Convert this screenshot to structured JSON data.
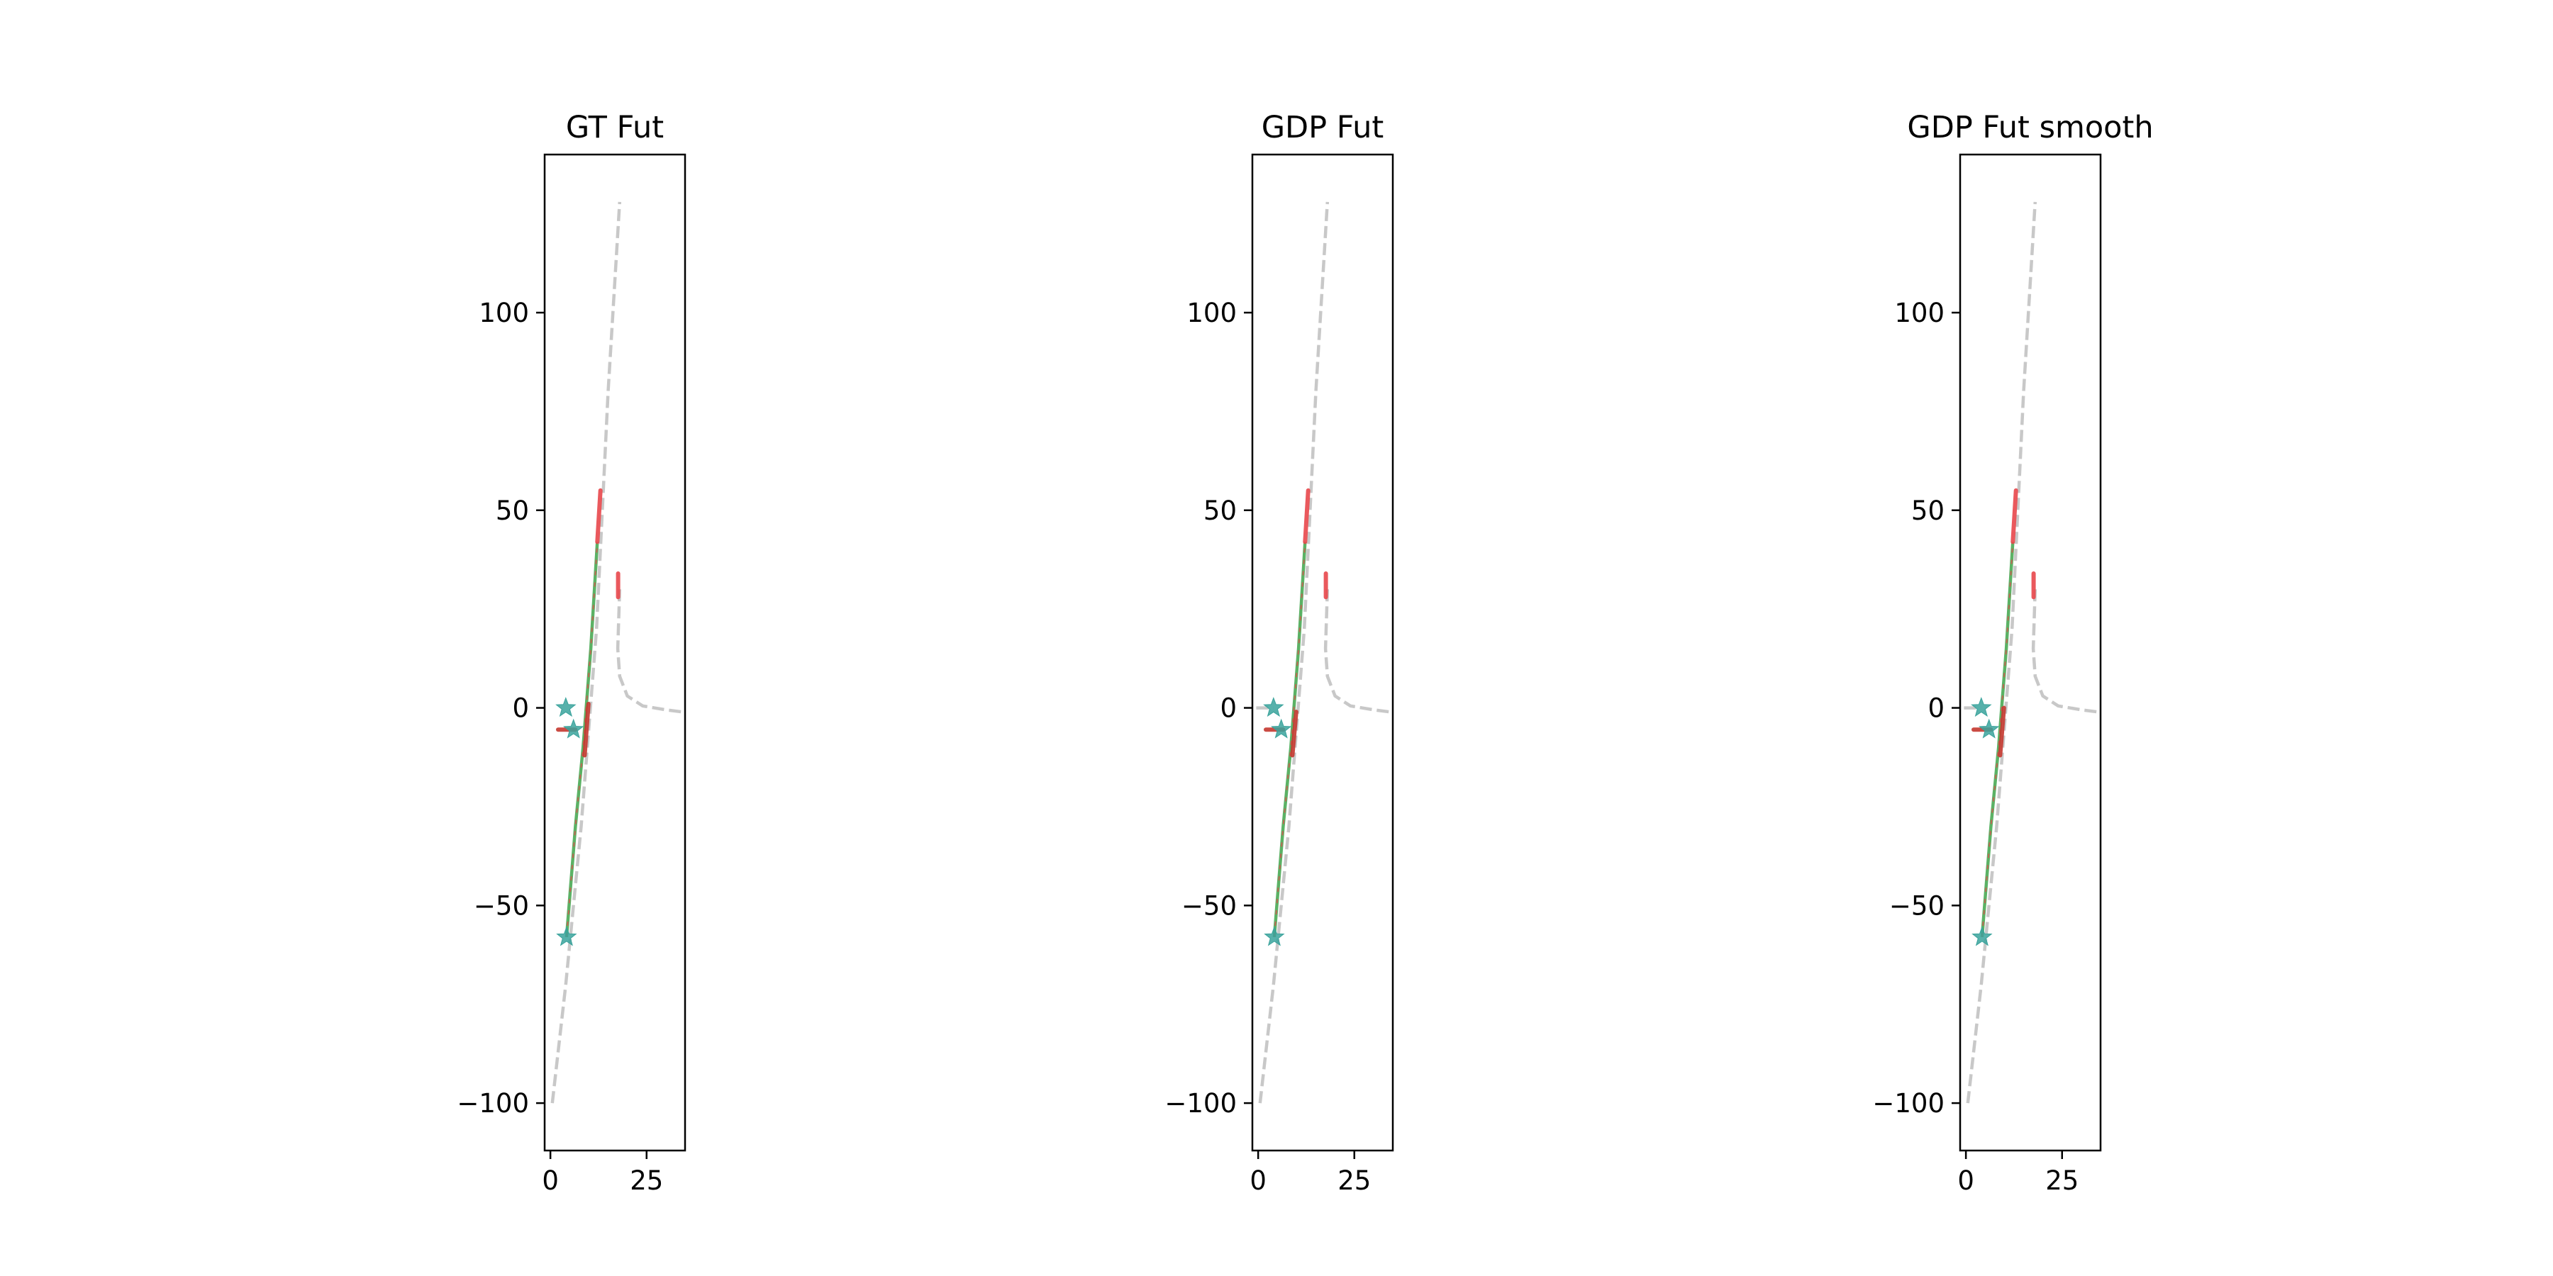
{
  "chart_data": [
    {
      "type": "scatter",
      "title": "GT Fut",
      "xlim": [
        -1.5,
        35
      ],
      "ylim": [
        -112,
        140
      ],
      "xticks": [
        0,
        25
      ],
      "xtick_labels": [
        "0",
        "25"
      ],
      "yticks": [
        -100,
        -50,
        0,
        50,
        100
      ],
      "ytick_labels": [
        "−100",
        "−50",
        "0",
        "50",
        "100"
      ],
      "grid": false,
      "lane_lines": [
        {
          "color": "#c8c8c8",
          "dashed": true,
          "x": [
            0.5,
            4,
            8,
            12,
            15,
            18
          ],
          "y": [
            -100,
            -70,
            -30,
            20,
            80,
            128
          ]
        },
        {
          "color": "#c8c8c8",
          "dashed": true,
          "x": [
            18,
            17.5,
            18,
            20,
            24,
            30,
            34
          ],
          "y": [
            30,
            15,
            8,
            3,
            0.5,
            -0.5,
            -1
          ]
        }
      ],
      "red_segments": [
        {
          "color": "#e8474b",
          "x": [
            12.2,
            13
          ],
          "y": [
            42,
            55
          ]
        },
        {
          "color": "#e8474b",
          "x": [
            17.6,
            17.6
          ],
          "y": [
            28,
            34
          ]
        },
        {
          "color": "#c4372f",
          "x": [
            9.9,
            8.9
          ],
          "y": [
            1,
            -12
          ]
        },
        {
          "color": "#c4372f",
          "x": [
            2,
            6.5
          ],
          "y": [
            -5.5,
            -5.5
          ]
        }
      ],
      "green_trajectories": [
        {
          "color": "#3ea54a",
          "x": [
            4.2,
            6.5,
            8.5,
            10.5,
            12.2
          ],
          "y": [
            -58,
            -30,
            -10,
            15,
            42
          ]
        }
      ],
      "stars": [
        {
          "color": "#3aa39c",
          "x": 4,
          "y": 0
        },
        {
          "color": "#3aa39c",
          "x": 6,
          "y": -5.5
        },
        {
          "color": "#3aa39c",
          "x": 4.2,
          "y": -58
        }
      ]
    },
    {
      "type": "scatter",
      "title": "GDP Fut",
      "xlim": [
        -1.5,
        35
      ],
      "ylim": [
        -112,
        140
      ],
      "xticks": [
        0,
        25
      ],
      "xtick_labels": [
        "0",
        "25"
      ],
      "yticks": [
        -100,
        -50,
        0,
        50,
        100
      ],
      "ytick_labels": [
        "−100",
        "−50",
        "0",
        "50",
        "100"
      ],
      "grid": false,
      "lane_lines": [
        {
          "color": "#c8c8c8",
          "dashed": true,
          "x": [
            0.5,
            4,
            8,
            12,
            15,
            18
          ],
          "y": [
            -100,
            -70,
            -30,
            20,
            80,
            128
          ]
        },
        {
          "color": "#c8c8c8",
          "dashed": true,
          "x": [
            18,
            17.5,
            18,
            20,
            24,
            30,
            34
          ],
          "y": [
            30,
            15,
            8,
            3,
            0.5,
            -0.5,
            -1
          ]
        },
        {
          "color": "#c8c8c8",
          "dashed": true,
          "x": [
            -0.5,
            4
          ],
          "y": [
            0,
            0
          ]
        }
      ],
      "red_segments": [
        {
          "color": "#e8474b",
          "x": [
            12.2,
            13
          ],
          "y": [
            42,
            55
          ]
        },
        {
          "color": "#e8474b",
          "x": [
            17.6,
            17.6
          ],
          "y": [
            28,
            34
          ]
        },
        {
          "color": "#c4372f",
          "x": [
            9.9,
            8.9
          ],
          "y": [
            -1,
            -12
          ]
        },
        {
          "color": "#c4372f",
          "x": [
            2,
            6.5
          ],
          "y": [
            -5.5,
            -5.5
          ]
        }
      ],
      "green_trajectories": [
        {
          "color": "#3ea54a",
          "x": [
            4.2,
            6.5,
            8.5,
            10.5,
            12.2
          ],
          "y": [
            -58,
            -30,
            -10,
            15,
            42
          ]
        }
      ],
      "stars": [
        {
          "color": "#3aa39c",
          "x": 4,
          "y": 0
        },
        {
          "color": "#3aa39c",
          "x": 6,
          "y": -5.5
        },
        {
          "color": "#3aa39c",
          "x": 4.2,
          "y": -58
        }
      ]
    },
    {
      "type": "scatter",
      "title": "GDP Fut smooth",
      "xlim": [
        -1.5,
        35
      ],
      "ylim": [
        -112,
        140
      ],
      "xticks": [
        0,
        25
      ],
      "xtick_labels": [
        "0",
        "25"
      ],
      "yticks": [
        -100,
        -50,
        0,
        50,
        100
      ],
      "ytick_labels": [
        "−100",
        "−50",
        "0",
        "50",
        "100"
      ],
      "grid": false,
      "lane_lines": [
        {
          "color": "#c8c8c8",
          "dashed": true,
          "x": [
            0.5,
            4,
            8,
            12,
            15,
            18
          ],
          "y": [
            -100,
            -70,
            -30,
            20,
            80,
            128
          ]
        },
        {
          "color": "#c8c8c8",
          "dashed": true,
          "x": [
            18,
            17.5,
            18,
            20,
            24,
            30,
            34
          ],
          "y": [
            30,
            15,
            8,
            3,
            0.5,
            -0.5,
            -1
          ]
        },
        {
          "color": "#c8c8c8",
          "dashed": true,
          "x": [
            -0.5,
            4
          ],
          "y": [
            0,
            0
          ]
        }
      ],
      "red_segments": [
        {
          "color": "#e8474b",
          "x": [
            12.2,
            13
          ],
          "y": [
            42,
            55
          ]
        },
        {
          "color": "#e8474b",
          "x": [
            17.6,
            17.6
          ],
          "y": [
            28,
            34
          ]
        },
        {
          "color": "#c4372f",
          "x": [
            9.9,
            8.9
          ],
          "y": [
            0,
            -12
          ]
        },
        {
          "color": "#c4372f",
          "x": [
            2,
            6.5
          ],
          "y": [
            -5.5,
            -5.5
          ]
        }
      ],
      "green_trajectories": [
        {
          "color": "#3ea54a",
          "x": [
            4.2,
            6.5,
            8.5,
            10.5,
            12.2
          ],
          "y": [
            -58,
            -30,
            -10,
            15,
            42
          ]
        }
      ],
      "stars": [
        {
          "color": "#3aa39c",
          "x": 4,
          "y": 0
        },
        {
          "color": "#3aa39c",
          "x": 6,
          "y": -5.5
        },
        {
          "color": "#3aa39c",
          "x": 4.2,
          "y": -58
        }
      ]
    }
  ]
}
